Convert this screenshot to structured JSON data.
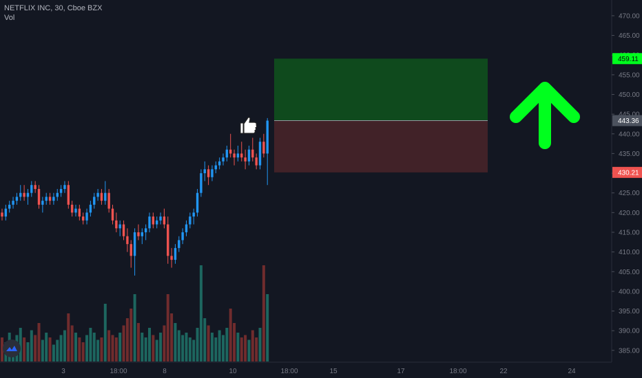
{
  "legend": {
    "title": "NETFLIX INC, 30, Cboe BZX",
    "volume_label": "Vol"
  },
  "colors": {
    "background": "#131722",
    "up": "#26a69a",
    "up_body": "#2196f3",
    "down": "#ef5350",
    "target_zone": "#0f4a1d",
    "stop_zone": "#412228",
    "arrow": "#00ff1e",
    "axis_text": "#787b86"
  },
  "icons": {
    "thumbs_up": "thumbs-up-icon",
    "arrow": "arrow-up-icon",
    "logo": "tradingview-logo-icon"
  },
  "chart_data": {
    "type": "candlestick",
    "y_axis": {
      "min": 382,
      "max": 474,
      "ticks": [
        385,
        390,
        395,
        400,
        405,
        410,
        415,
        420,
        425,
        430,
        435,
        440,
        445,
        450,
        455,
        460,
        465,
        470
      ],
      "tick_labels": [
        "385.00",
        "390.00",
        "395.00",
        "400.00",
        "405.00",
        "410.00",
        "415.00",
        "420.00",
        "425.00",
        "430.00",
        "435.00",
        "440.00",
        "445.00",
        "450.00",
        "455.00",
        "460.00",
        "465.00",
        "470.00"
      ]
    },
    "x_axis": {
      "tick_labels": [
        "3",
        "18:00",
        "8",
        "10",
        "18:00",
        "15",
        "17",
        "18:00",
        "22",
        "24"
      ]
    },
    "price_tags": [
      {
        "label": "target",
        "value": 459.11,
        "text": "459.11"
      },
      {
        "label": "last",
        "value": 443.36,
        "text": "443.36"
      },
      {
        "label": "stop",
        "value": 430.21,
        "text": "430.21"
      }
    ],
    "position": {
      "type": "long",
      "entry": 443.36,
      "target": 459.11,
      "stop": 430.21
    },
    "candles": [
      {
        "o": 420,
        "h": 421,
        "l": 418,
        "c": 419
      },
      {
        "o": 419,
        "h": 422,
        "l": 418,
        "c": 421
      },
      {
        "o": 421,
        "h": 423,
        "l": 420,
        "c": 422
      },
      {
        "o": 422,
        "h": 424,
        "l": 421,
        "c": 423
      },
      {
        "o": 423,
        "h": 425,
        "l": 422,
        "c": 424
      },
      {
        "o": 424,
        "h": 427,
        "l": 423,
        "c": 425
      },
      {
        "o": 425,
        "h": 427,
        "l": 423,
        "c": 424
      },
      {
        "o": 424,
        "h": 426,
        "l": 422,
        "c": 425
      },
      {
        "o": 425,
        "h": 428,
        "l": 424,
        "c": 427
      },
      {
        "o": 427,
        "h": 428,
        "l": 425,
        "c": 426
      },
      {
        "o": 426,
        "h": 427,
        "l": 421,
        "c": 422
      },
      {
        "o": 422,
        "h": 424,
        "l": 420,
        "c": 423
      },
      {
        "o": 423,
        "h": 425,
        "l": 422,
        "c": 424
      },
      {
        "o": 424,
        "h": 425,
        "l": 422,
        "c": 423
      },
      {
        "o": 423,
        "h": 425,
        "l": 422,
        "c": 424
      },
      {
        "o": 424,
        "h": 426,
        "l": 423,
        "c": 425
      },
      {
        "o": 425,
        "h": 427,
        "l": 424,
        "c": 426
      },
      {
        "o": 426,
        "h": 428,
        "l": 425,
        "c": 427
      },
      {
        "o": 427,
        "h": 428,
        "l": 421,
        "c": 422
      },
      {
        "o": 422,
        "h": 423,
        "l": 419,
        "c": 420
      },
      {
        "o": 420,
        "h": 422,
        "l": 419,
        "c": 421
      },
      {
        "o": 421,
        "h": 422,
        "l": 418,
        "c": 419
      },
      {
        "o": 419,
        "h": 420,
        "l": 417,
        "c": 418
      },
      {
        "o": 418,
        "h": 421,
        "l": 417,
        "c": 420
      },
      {
        "o": 420,
        "h": 423,
        "l": 419,
        "c": 422
      },
      {
        "o": 422,
        "h": 425,
        "l": 421,
        "c": 424
      },
      {
        "o": 424,
        "h": 426,
        "l": 423,
        "c": 425
      },
      {
        "o": 425,
        "h": 426,
        "l": 422,
        "c": 423
      },
      {
        "o": 423,
        "h": 428,
        "l": 422,
        "c": 425
      },
      {
        "o": 425,
        "h": 426,
        "l": 420,
        "c": 421
      },
      {
        "o": 421,
        "h": 422,
        "l": 417,
        "c": 418
      },
      {
        "o": 418,
        "h": 420,
        "l": 415,
        "c": 416
      },
      {
        "o": 416,
        "h": 418,
        "l": 414,
        "c": 417
      },
      {
        "o": 417,
        "h": 418,
        "l": 413,
        "c": 414
      },
      {
        "o": 414,
        "h": 416,
        "l": 410,
        "c": 412
      },
      {
        "o": 412,
        "h": 413,
        "l": 406,
        "c": 409
      },
      {
        "o": 409,
        "h": 416,
        "l": 404,
        "c": 415
      },
      {
        "o": 415,
        "h": 417,
        "l": 413,
        "c": 414
      },
      {
        "o": 414,
        "h": 416,
        "l": 412,
        "c": 415
      },
      {
        "o": 415,
        "h": 417,
        "l": 413,
        "c": 416
      },
      {
        "o": 416,
        "h": 420,
        "l": 415,
        "c": 419
      },
      {
        "o": 419,
        "h": 420,
        "l": 416,
        "c": 417
      },
      {
        "o": 417,
        "h": 419,
        "l": 416,
        "c": 418
      },
      {
        "o": 418,
        "h": 420,
        "l": 417,
        "c": 419
      },
      {
        "o": 419,
        "h": 421,
        "l": 416,
        "c": 417
      },
      {
        "o": 417,
        "h": 419,
        "l": 407,
        "c": 409
      },
      {
        "o": 409,
        "h": 411,
        "l": 406,
        "c": 408
      },
      {
        "o": 408,
        "h": 412,
        "l": 407,
        "c": 411
      },
      {
        "o": 411,
        "h": 414,
        "l": 410,
        "c": 413
      },
      {
        "o": 413,
        "h": 416,
        "l": 412,
        "c": 415
      },
      {
        "o": 415,
        "h": 418,
        "l": 414,
        "c": 417
      },
      {
        "o": 417,
        "h": 420,
        "l": 416,
        "c": 419
      },
      {
        "o": 419,
        "h": 421,
        "l": 417,
        "c": 420
      },
      {
        "o": 420,
        "h": 426,
        "l": 419,
        "c": 425
      },
      {
        "o": 425,
        "h": 431,
        "l": 424,
        "c": 430
      },
      {
        "o": 430,
        "h": 433,
        "l": 428,
        "c": 431
      },
      {
        "o": 431,
        "h": 432,
        "l": 427,
        "c": 429
      },
      {
        "o": 429,
        "h": 432,
        "l": 428,
        "c": 431
      },
      {
        "o": 431,
        "h": 433,
        "l": 430,
        "c": 432
      },
      {
        "o": 432,
        "h": 434,
        "l": 431,
        "c": 433
      },
      {
        "o": 433,
        "h": 435,
        "l": 432,
        "c": 434
      },
      {
        "o": 434,
        "h": 437,
        "l": 433,
        "c": 436
      },
      {
        "o": 436,
        "h": 440,
        "l": 434,
        "c": 435
      },
      {
        "o": 435,
        "h": 436,
        "l": 432,
        "c": 434
      },
      {
        "o": 434,
        "h": 437,
        "l": 433,
        "c": 435
      },
      {
        "o": 435,
        "h": 438,
        "l": 433,
        "c": 434
      },
      {
        "o": 434,
        "h": 436,
        "l": 431,
        "c": 433
      },
      {
        "o": 433,
        "h": 437,
        "l": 432,
        "c": 436
      },
      {
        "o": 436,
        "h": 439,
        "l": 433,
        "c": 434
      },
      {
        "o": 434,
        "h": 435,
        "l": 431,
        "c": 432
      },
      {
        "o": 432,
        "h": 439,
        "l": 431,
        "c": 438
      },
      {
        "o": 438,
        "h": 440,
        "l": 434,
        "c": 435
      },
      {
        "o": 435,
        "h": 444,
        "l": 427,
        "c": 443.36
      }
    ],
    "volumes": [
      10,
      8,
      12,
      9,
      11,
      14,
      10,
      8,
      13,
      11,
      16,
      9,
      12,
      10,
      7,
      9,
      11,
      13,
      20,
      15,
      12,
      10,
      8,
      11,
      14,
      12,
      9,
      10,
      24,
      13,
      11,
      10,
      12,
      15,
      18,
      22,
      28,
      16,
      12,
      10,
      14,
      11,
      9,
      12,
      15,
      28,
      20,
      16,
      13,
      11,
      12,
      10,
      9,
      14,
      40,
      18,
      15,
      12,
      10,
      13,
      11,
      14,
      22,
      16,
      12,
      10,
      11,
      9,
      13,
      10,
      14,
      40,
      28
    ]
  }
}
